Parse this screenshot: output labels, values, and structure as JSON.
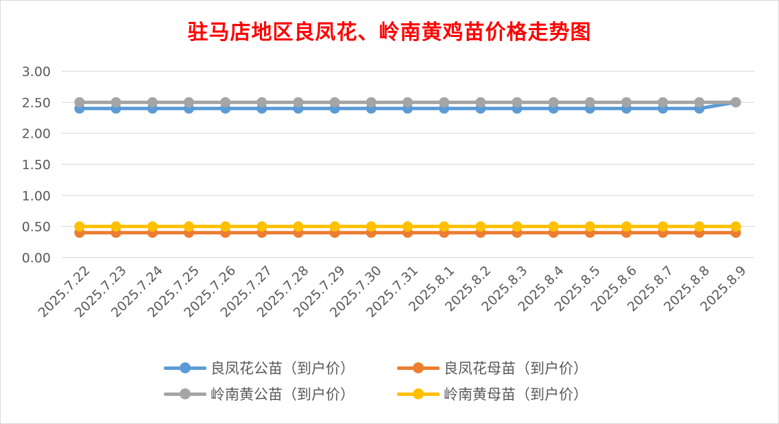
{
  "chart_data": {
    "type": "line",
    "title": "驻马店地区良凤花、岭南黄鸡苗价格走势图",
    "xlabel": "",
    "ylabel": "",
    "ylim": [
      0,
      3
    ],
    "yticks": [
      "0.00",
      "0.50",
      "1.00",
      "1.50",
      "2.00",
      "2.50",
      "3.00"
    ],
    "grid": true,
    "legend_position": "bottom",
    "categories": [
      "2025.7.22",
      "2025.7.23",
      "2025.7.24",
      "2025.7.25",
      "2025.7.26",
      "2025.7.27",
      "2025.7.28",
      "2025.7.29",
      "2025.7.30",
      "2025.7.31",
      "2025.8.1",
      "2025.8.2",
      "2025.8.3",
      "2025.8.4",
      "2025.8.5",
      "2025.8.6",
      "2025.8.7",
      "2025.8.8",
      "2025.8.9"
    ],
    "series": [
      {
        "name": "良凤花公苗（到户价）",
        "color": "#5b9bd5",
        "values": [
          2.4,
          2.4,
          2.4,
          2.4,
          2.4,
          2.4,
          2.4,
          2.4,
          2.4,
          2.4,
          2.4,
          2.4,
          2.4,
          2.4,
          2.4,
          2.4,
          2.4,
          2.4,
          2.5
        ]
      },
      {
        "name": "良凤花母苗（到户价）",
        "color": "#ed7d31",
        "values": [
          0.4,
          0.4,
          0.4,
          0.4,
          0.4,
          0.4,
          0.4,
          0.4,
          0.4,
          0.4,
          0.4,
          0.4,
          0.4,
          0.4,
          0.4,
          0.4,
          0.4,
          0.4,
          0.4
        ]
      },
      {
        "name": "岭南黄公苗（到户价）",
        "color": "#a5a5a5",
        "values": [
          2.5,
          2.5,
          2.5,
          2.5,
          2.5,
          2.5,
          2.5,
          2.5,
          2.5,
          2.5,
          2.5,
          2.5,
          2.5,
          2.5,
          2.5,
          2.5,
          2.5,
          2.5,
          2.5
        ]
      },
      {
        "name": "岭南黄母苗（到户价）",
        "color": "#ffc000",
        "values": [
          0.5,
          0.5,
          0.5,
          0.5,
          0.5,
          0.5,
          0.5,
          0.5,
          0.5,
          0.5,
          0.5,
          0.5,
          0.5,
          0.5,
          0.5,
          0.5,
          0.5,
          0.5,
          0.5
        ]
      }
    ]
  }
}
